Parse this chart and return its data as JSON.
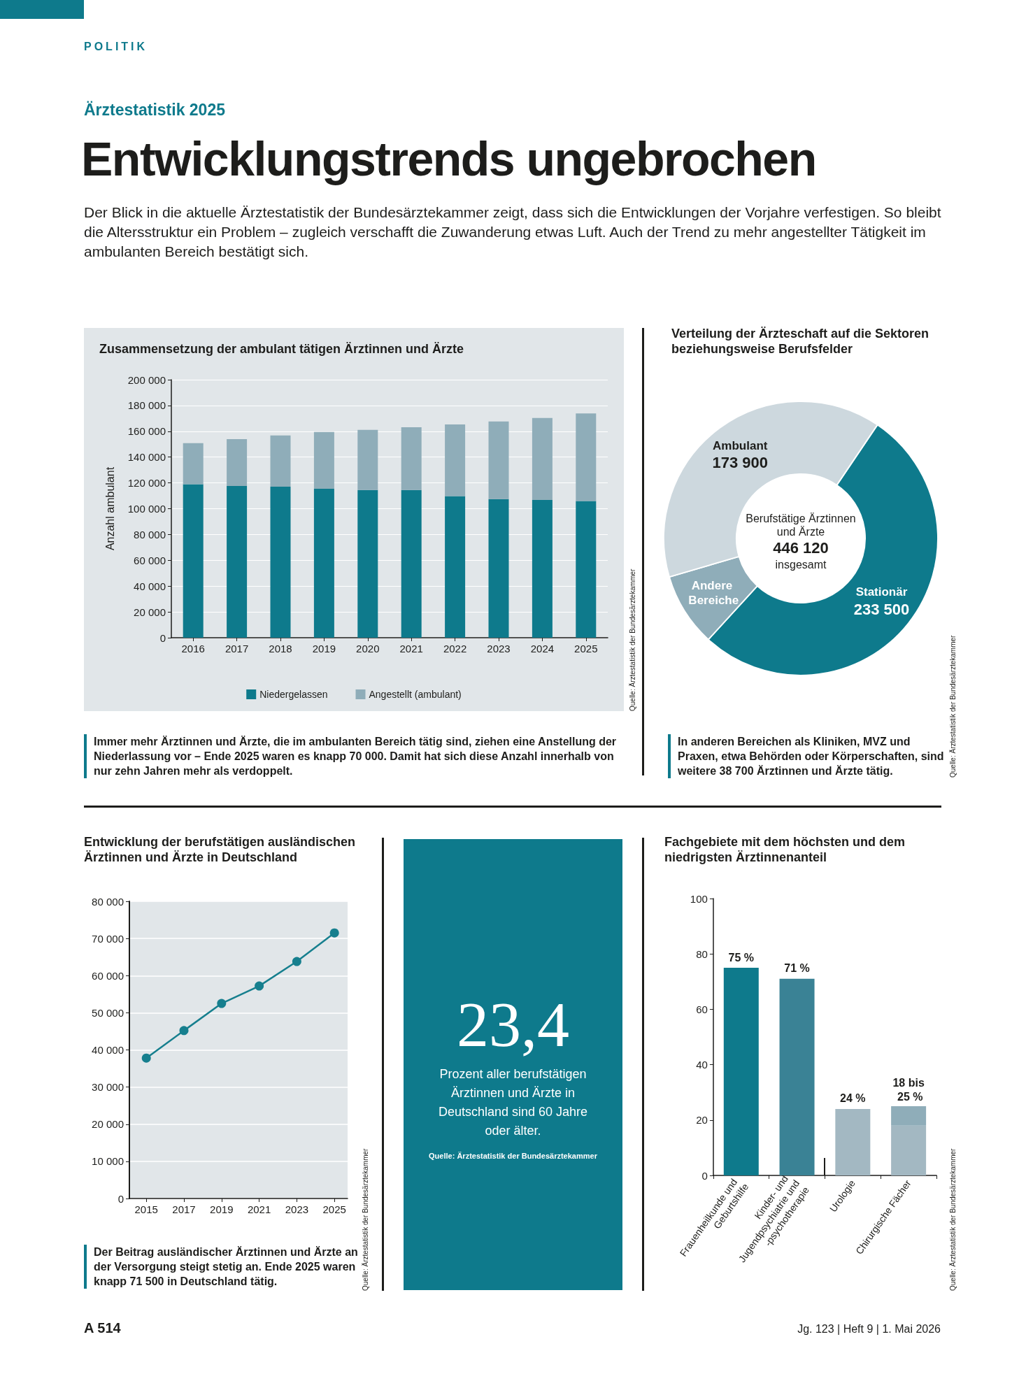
{
  "chart_data": [
    {
      "type": "other",
      "title": "Entwicklungstrends ungebrochen",
      "subtitle": "Der Blick in die aktuelle Ärztestatistik der Bundesärztekammer zeigt, dass sich die Entwicklungen der Vorjahre verfestigen. So bleibt die Altersstruktur ein Problem – zugleich verschafft die Zuwanderung etwas Luft. Auch der Trend zu mehr angestellter Tätigkeit im ambulanten Bereich bestätigt sich.",
      "annotations": [
        "POLITIK",
        "Ärztestatistik 2025"
      ]
    },
    {
      "type": "bar",
      "title": "Zusammensetzung der ambulant tätigen Ärztinnen und Ärzte",
      "ylabel": "Anzahl ambulant",
      "categories": [
        "2016",
        "2017",
        "2018",
        "2019",
        "2020",
        "2021",
        "2022",
        "2023",
        "2024",
        "2025"
      ],
      "stacked": true,
      "series": [
        {
          "name": "Niedergelassen",
          "color": "#0e7a8c",
          "values": [
            119000,
            117600,
            117100,
            115500,
            114500,
            114500,
            109700,
            107400,
            106800,
            106000
          ]
        },
        {
          "name": "Angestellt (ambulant)",
          "color": "#8fadb9",
          "values": [
            31800,
            36300,
            39700,
            44000,
            46600,
            48700,
            55600,
            60200,
            63500,
            67900
          ]
        }
      ],
      "ylim": [
        0,
        200000
      ],
      "yticks": [
        0,
        {
          "value": 20000,
          "label": "20 000"
        },
        {
          "value": 40000,
          "label": "40 000"
        },
        {
          "value": 60000,
          "label": "60 000"
        },
        {
          "value": 80000,
          "label": "80 000"
        },
        {
          "value": 100000,
          "label": "100 000"
        },
        {
          "value": 120000,
          "label": "120 000"
        },
        {
          "value": 140000,
          "label": "140 000"
        },
        {
          "value": 160000,
          "label": "160 000"
        },
        {
          "value": 180000,
          "label": "180 000"
        },
        {
          "value": 200000,
          "label": "200 000"
        }
      ],
      "grid": "y",
      "legend": "bottom",
      "annotations": [
        "Quelle: Ärztestatistik der Bundesärztekammer",
        "Immer mehr Ärztinnen und Ärzte, die im ambulanten Bereich tätig sind, ziehen eine Anstellung der Niederlassung vor – Ende 2025 waren es knapp 70 000. Damit hat sich diese Anzahl innerhalb von nur zehn Jahren mehr als verdoppelt."
      ]
    },
    {
      "type": "donut",
      "title": "Verteilung der Ärzteschaft auf die Sektoren beziehungsweise Berufsfelder",
      "categories": [
        "Stationär",
        "Andere Bereiche",
        "Ambulant"
      ],
      "values": [
        233500,
        38700,
        173900
      ],
      "colors": [
        "#0e7a8c",
        "#8fadb9",
        "#cdd8de"
      ],
      "value_labels": [
        "233 500",
        null,
        "173 900"
      ],
      "annotations": [
        "Berufstätige Ärztinnen und Ärzte",
        "446 120",
        "insgesamt",
        "Quelle: Ärztestatistik der Bundesärztekammer",
        "In anderen Bereichen als Kliniken, MVZ und Praxen, etwa Behörden oder Körperschaften, sind weitere 38 700 Ärztinnen und Ärzte tätig."
      ]
    },
    {
      "type": "line",
      "title": "Entwicklung der berufstätigen ausländischen Ärztinnen und Ärzte in Deutschland",
      "x": [
        2015,
        2017,
        2019,
        2021,
        2023,
        2025
      ],
      "values": [
        37800,
        45200,
        52500,
        57200,
        63800,
        71500
      ],
      "color": "#167f8e",
      "marker": "circle",
      "xlim": [
        2014.1,
        2025.7
      ],
      "xticks": [
        2015,
        2017,
        2019,
        2021,
        2023,
        2025
      ],
      "ylim": [
        0,
        80000
      ],
      "yticks": [
        0,
        {
          "value": 10000,
          "label": "10 000"
        },
        {
          "value": 20000,
          "label": "20 000"
        },
        {
          "value": 30000,
          "label": "30 000"
        },
        {
          "value": 40000,
          "label": "40 000"
        },
        {
          "value": 50000,
          "label": "50 000"
        },
        {
          "value": 60000,
          "label": "60 000"
        },
        {
          "value": 70000,
          "label": "70 000"
        },
        {
          "value": 80000,
          "label": "80 000"
        }
      ],
      "grid": "y",
      "annotations": [
        "Quelle: Ärztestatistik der Bundesärztekammer",
        "Der Beitrag ausländischer Ärztinnen und Ärzte an der Versorgung steigt stetig an. Ende 2025 waren knapp 71 500 in Deutschland tätig."
      ]
    },
    {
      "type": "other",
      "title": "23,4",
      "annotations": [
        "Prozent aller berufstätigen Ärztinnen und Ärzte in Deutschland sind 60 Jahre oder älter.",
        "Quelle: Ärztestatistik der Bundesärztekammer"
      ]
    },
    {
      "type": "bar",
      "title": "Fachgebiete mit dem höchsten und dem niedrigsten Ärztinnenanteil",
      "categories": [
        "Frauenheilkunde und Geburtshilfe",
        "Kinder- und Jugendpsychiatrie und -psychotherapie",
        "Urologie",
        "Chirurgische Fächer"
      ],
      "stacked": true,
      "series": [
        {
          "colors": [
            "#0e7a8c",
            "#3a8295",
            "#a3b8c2",
            "#a3b8c2"
          ],
          "values": [
            75,
            71,
            24,
            18
          ],
          "value_labels": [
            "75 %",
            "71 %",
            "24 %",
            null
          ]
        },
        {
          "color": "#8fadb9",
          "values": [
            null,
            null,
            null,
            7
          ]
        }
      ],
      "ylim": [
        0,
        100
      ],
      "yticks": [
        0,
        20,
        40,
        60,
        80,
        100
      ],
      "annotations": [
        "Quelle: Ärztestatistik der Bundesärztekammer",
        {
          "text": "18 bis 25 %",
          "x": "Chirurgische Fächer",
          "y": 25
        }
      ]
    },
    {
      "type": "other",
      "annotations": [
        "A 514",
        "Jg. 123 | Heft 9 | 1. Mai 2026"
      ]
    }
  ]
}
